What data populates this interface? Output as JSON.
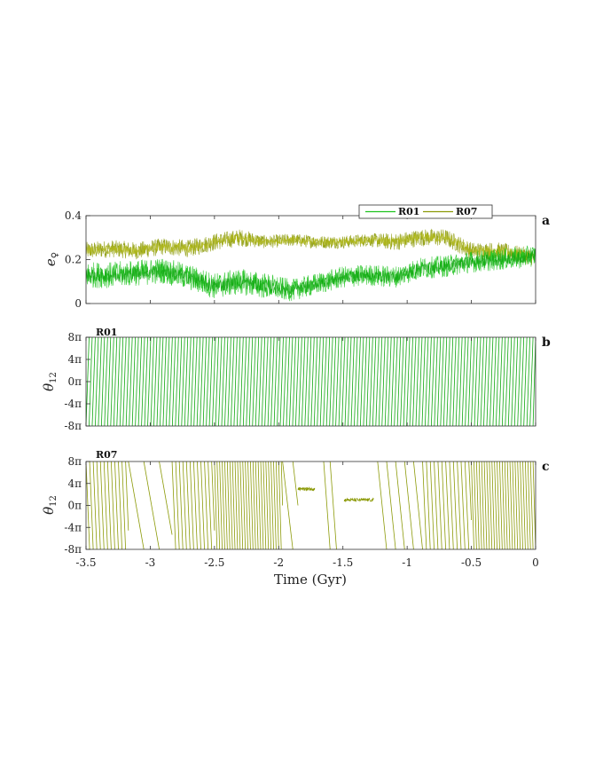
{
  "colors": {
    "R01": "#1ec21e",
    "R01_dark": "#10a810",
    "R07": "#8c9a08",
    "R07_light": "#b0b818",
    "axis": "#333333"
  },
  "xlabel": "Time (Gyr)",
  "x_ticks": [
    -3.5,
    -3,
    -2.5,
    -2,
    -1.5,
    -1,
    -0.5,
    0
  ],
  "x_tick_labels": [
    "-3.5",
    "-3",
    "-2.5",
    "-2",
    "-1.5",
    "-1",
    "-0.5",
    "0"
  ],
  "chart_data": [
    {
      "panel": "a",
      "type": "line",
      "ylabel": "e",
      "ylabel_sub": "♀",
      "xlim": [
        -3.5,
        0
      ],
      "ylim": [
        0,
        0.4
      ],
      "y_ticks": [
        0,
        0.2,
        0.4
      ],
      "y_tick_labels": [
        "0",
        "0.2",
        "0.4"
      ],
      "legend": [
        "R01",
        "R07"
      ],
      "legend_position": "top-right",
      "series": [
        {
          "name": "R01",
          "x": [
            -3.5,
            -3.3,
            -3.1,
            -2.9,
            -2.7,
            -2.5,
            -2.3,
            -2.1,
            -1.9,
            -1.7,
            -1.5,
            -1.3,
            -1.1,
            -0.9,
            -0.7,
            -0.5,
            -0.3,
            -0.1,
            0
          ],
          "mean": [
            0.13,
            0.13,
            0.14,
            0.15,
            0.12,
            0.08,
            0.1,
            0.08,
            0.06,
            0.09,
            0.12,
            0.13,
            0.12,
            0.16,
            0.17,
            0.19,
            0.2,
            0.21,
            0.22
          ],
          "amplitude": [
            0.06,
            0.06,
            0.06,
            0.06,
            0.06,
            0.06,
            0.06,
            0.06,
            0.05,
            0.05,
            0.05,
            0.05,
            0.05,
            0.05,
            0.05,
            0.05,
            0.05,
            0.05,
            0.05
          ]
        },
        {
          "name": "R07",
          "x": [
            -3.5,
            -3.3,
            -3.1,
            -2.9,
            -2.7,
            -2.5,
            -2.3,
            -2.1,
            -1.9,
            -1.7,
            -1.5,
            -1.3,
            -1.1,
            -0.9,
            -0.7,
            -0.5,
            -0.3,
            -0.1,
            0
          ],
          "mean": [
            0.24,
            0.25,
            0.24,
            0.26,
            0.25,
            0.28,
            0.3,
            0.28,
            0.29,
            0.28,
            0.28,
            0.29,
            0.28,
            0.3,
            0.3,
            0.24,
            0.24,
            0.22,
            0.21
          ],
          "amplitude": [
            0.04,
            0.04,
            0.04,
            0.04,
            0.04,
            0.04,
            0.04,
            0.03,
            0.03,
            0.03,
            0.03,
            0.03,
            0.04,
            0.04,
            0.04,
            0.04,
            0.04,
            0.04,
            0.04
          ]
        }
      ]
    },
    {
      "panel": "b",
      "type": "line",
      "run": "R01",
      "ylabel": "θ",
      "ylabel_sub": "12",
      "xlim": [
        -3.5,
        0
      ],
      "ylim_pi": [
        -8,
        8
      ],
      "y_ticks_pi": [
        -8,
        -4,
        0,
        4,
        8
      ],
      "y_tick_labels": [
        "-8π",
        "-4π",
        "0π",
        "4π",
        "8π"
      ],
      "behavior": "circulating",
      "circulation_period_gyr": 0.024
    },
    {
      "panel": "c",
      "type": "line",
      "run": "R07",
      "ylabel": "θ",
      "ylabel_sub": "12",
      "xlim": [
        -3.5,
        0
      ],
      "ylim_pi": [
        -8,
        8
      ],
      "y_ticks_pi": [
        -8,
        -4,
        0,
        4,
        8
      ],
      "y_tick_labels": [
        "-8π",
        "-4π",
        "0π",
        "4π",
        "8π"
      ],
      "segments": [
        {
          "start": -3.5,
          "end": -3.17,
          "mode": "circulating",
          "period_gyr": 0.028
        },
        {
          "start": -3.17,
          "end": -2.83,
          "mode": "circulating",
          "period_gyr": 0.12
        },
        {
          "start": -2.83,
          "end": -2.5,
          "mode": "circulating",
          "period_gyr": 0.028
        },
        {
          "start": -2.5,
          "end": -1.97,
          "mode": "circulating",
          "period_gyr": 0.02
        },
        {
          "start": -1.97,
          "end": -1.85,
          "mode": "circulating",
          "period_gyr": 0.08
        },
        {
          "start": -1.85,
          "end": -1.72,
          "mode": "libration",
          "center_pi": 3,
          "amplitude_pi": 0.3
        },
        {
          "start": -1.65,
          "end": -1.55,
          "mode": "circulating",
          "period_gyr": 0.05
        },
        {
          "start": -1.49,
          "end": -1.26,
          "mode": "libration",
          "center_pi": 1,
          "amplitude_pi": 0.3
        },
        {
          "start": -1.23,
          "end": -0.88,
          "mode": "circulating",
          "period_gyr": 0.07
        },
        {
          "start": -0.88,
          "end": -0.5,
          "mode": "circulating",
          "period_gyr": 0.03
        },
        {
          "start": -0.5,
          "end": 0,
          "mode": "circulating",
          "period_gyr": 0.02
        }
      ]
    }
  ],
  "panel_letters": {
    "a": "a",
    "b": "b",
    "c": "c"
  },
  "run_labels": {
    "b": "R01",
    "c": "R07"
  }
}
